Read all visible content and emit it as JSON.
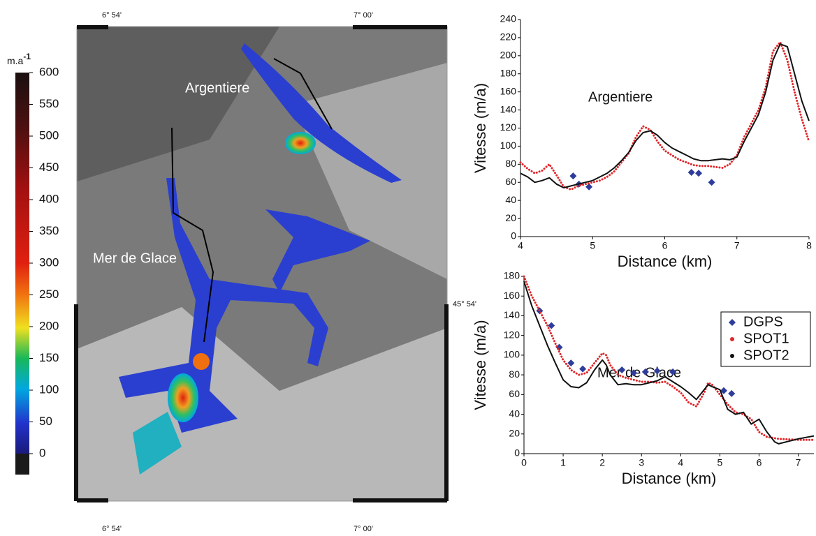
{
  "map": {
    "coords": {
      "top_left": "6° 54'",
      "top_right": "7° 00'",
      "bottom_left": "6° 54'",
      "bottom_right": "7° 00'",
      "right": "45° 54'"
    },
    "labels": [
      "Argentiere",
      "Mer de Glace"
    ],
    "colorbar": {
      "unit": "m.a",
      "exponent": "-1",
      "lim": [
        0,
        600
      ],
      "ticks": [
        0,
        50,
        100,
        150,
        200,
        250,
        300,
        350,
        400,
        450,
        500,
        550,
        600
      ]
    }
  },
  "chart_data": [
    {
      "type": "line",
      "annotation": "Argentiere",
      "xlabel": "Distance (km)",
      "ylabel": "Vitesse (m/a)",
      "xlim": [
        4,
        8
      ],
      "xticks": [
        4,
        5,
        6,
        7,
        8
      ],
      "ylim": [
        0,
        240
      ],
      "yticks": [
        0,
        20,
        40,
        60,
        80,
        100,
        120,
        140,
        160,
        180,
        200,
        220,
        240
      ],
      "series": [
        {
          "color": "#2e3d9c",
          "style": "points",
          "x": [
            4.73,
            4.81,
            4.95,
            6.37,
            6.47,
            6.65
          ],
          "values": [
            67,
            58,
            55,
            71,
            70,
            60
          ]
        },
        {
          "color": "#e0262b",
          "style": "dotted",
          "x": [
            4.0,
            4.1,
            4.2,
            4.3,
            4.4,
            4.5,
            4.6,
            4.7,
            4.8,
            4.9,
            5.0,
            5.1,
            5.2,
            5.3,
            5.4,
            5.5,
            5.6,
            5.7,
            5.8,
            5.9,
            6.0,
            6.1,
            6.2,
            6.3,
            6.4,
            6.5,
            6.6,
            6.7,
            6.8,
            6.9,
            7.0,
            7.1,
            7.2,
            7.3,
            7.4,
            7.5,
            7.6,
            7.7,
            7.8,
            7.9,
            8.0
          ],
          "values": [
            82,
            75,
            70,
            73,
            80,
            68,
            55,
            52,
            56,
            58,
            60,
            62,
            66,
            72,
            82,
            92,
            110,
            122,
            118,
            105,
            95,
            90,
            85,
            82,
            79,
            78,
            78,
            77,
            76,
            80,
            90,
            110,
            125,
            140,
            165,
            205,
            215,
            195,
            160,
            130,
            105
          ]
        },
        {
          "color": "#111111",
          "style": "solid",
          "x": [
            4.0,
            4.1,
            4.2,
            4.3,
            4.4,
            4.5,
            4.6,
            4.7,
            4.8,
            4.9,
            5.0,
            5.1,
            5.2,
            5.3,
            5.4,
            5.5,
            5.6,
            5.7,
            5.8,
            5.9,
            6.0,
            6.1,
            6.2,
            6.3,
            6.4,
            6.5,
            6.6,
            6.7,
            6.8,
            6.9,
            7.0,
            7.1,
            7.2,
            7.3,
            7.4,
            7.5,
            7.6,
            7.7,
            7.8,
            7.9,
            8.0
          ],
          "values": [
            70,
            66,
            60,
            62,
            65,
            58,
            54,
            56,
            58,
            60,
            62,
            66,
            70,
            76,
            84,
            93,
            106,
            115,
            117,
            112,
            104,
            98,
            94,
            90,
            86,
            84,
            84,
            85,
            86,
            85,
            88,
            105,
            120,
            135,
            160,
            195,
            213,
            210,
            180,
            150,
            128
          ]
        }
      ]
    },
    {
      "type": "line",
      "annotation": "Mer de Glace",
      "xlabel": "Distance (km)",
      "ylabel": "Vitesse (m/a)",
      "xlim": [
        0,
        7.4
      ],
      "xticks": [
        0,
        1,
        2,
        3,
        4,
        5,
        6,
        7
      ],
      "ylim": [
        0,
        180
      ],
      "yticks": [
        0,
        20,
        40,
        60,
        80,
        100,
        120,
        140,
        160,
        180
      ],
      "legend": "upper right",
      "series": [
        {
          "name": "DGPS",
          "color": "#2e3d9c",
          "style": "points",
          "x": [
            0.4,
            0.7,
            0.9,
            1.2,
            1.5,
            2.5,
            2.8,
            3.1,
            3.4,
            3.8,
            5.1,
            5.3
          ],
          "values": [
            145,
            130,
            108,
            92,
            86,
            85,
            82,
            83,
            84,
            83,
            64,
            61
          ]
        },
        {
          "name": "SPOT1",
          "color": "#e0262b",
          "style": "dotted",
          "x": [
            0,
            0.2,
            0.4,
            0.6,
            0.8,
            1.0,
            1.2,
            1.4,
            1.6,
            1.8,
            2.0,
            2.1,
            2.2,
            2.4,
            2.6,
            2.8,
            3.0,
            3.2,
            3.4,
            3.6,
            3.8,
            4.0,
            4.2,
            4.4,
            4.6,
            4.7,
            4.8,
            5.0,
            5.2,
            5.4,
            5.6,
            5.8,
            6.0,
            6.2,
            6.5,
            7.0,
            7.4
          ],
          "values": [
            180,
            160,
            145,
            130,
            112,
            95,
            85,
            80,
            82,
            92,
            102,
            100,
            90,
            80,
            77,
            75,
            73,
            73,
            72,
            73,
            68,
            62,
            52,
            48,
            62,
            72,
            70,
            60,
            50,
            42,
            40,
            35,
            22,
            17,
            15,
            14,
            14
          ]
        },
        {
          "name": "SPOT2",
          "color": "#111111",
          "style": "solid",
          "x": [
            0,
            0.2,
            0.4,
            0.6,
            0.8,
            1.0,
            1.2,
            1.4,
            1.6,
            1.8,
            2.0,
            2.1,
            2.2,
            2.4,
            2.6,
            2.8,
            3.0,
            3.2,
            3.4,
            3.6,
            3.8,
            4.0,
            4.2,
            4.4,
            4.6,
            4.7,
            4.8,
            5.0,
            5.2,
            5.4,
            5.6,
            5.8,
            6.0,
            6.2,
            6.4,
            6.5,
            7.0,
            7.4
          ],
          "values": [
            175,
            150,
            130,
            110,
            92,
            75,
            68,
            67,
            72,
            85,
            95,
            90,
            80,
            70,
            71,
            70,
            70,
            72,
            74,
            78,
            73,
            68,
            62,
            55,
            65,
            70,
            68,
            65,
            45,
            40,
            42,
            30,
            35,
            22,
            12,
            10,
            15,
            18
          ]
        }
      ]
    }
  ]
}
